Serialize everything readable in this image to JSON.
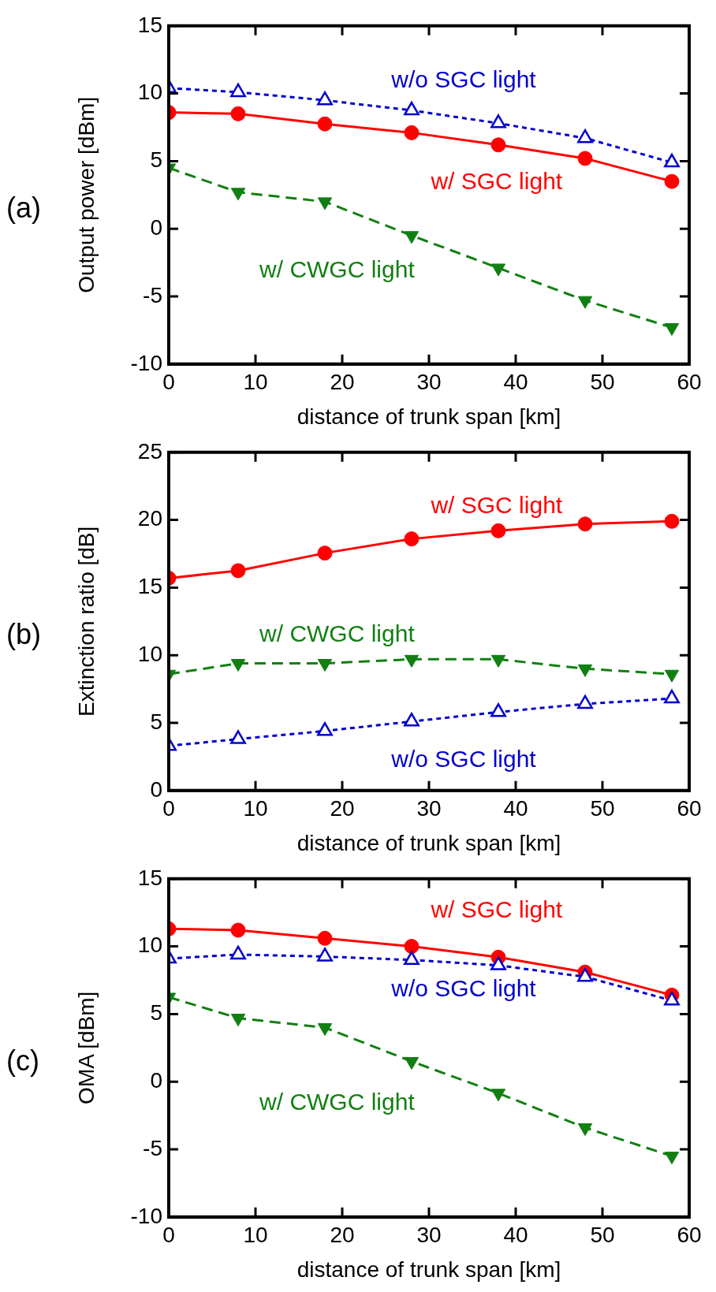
{
  "chart_data": [
    {
      "type": "line",
      "xlabel": "distance of trunk span [km]",
      "ylabel": "Output power [dBm]",
      "annotations": [
        "(a)"
      ],
      "x": [
        0,
        8,
        18,
        28,
        38,
        48,
        58
      ],
      "xlim": [
        0,
        60
      ],
      "xticks": [
        0,
        10,
        20,
        30,
        40,
        50,
        60
      ],
      "ylim": [
        -10,
        15
      ],
      "yticks": [
        -10,
        -5,
        0,
        5,
        10,
        15
      ],
      "legend": false,
      "series": [
        {
          "name": "w/o SGC light",
          "color": "#0000cc",
          "marker": "triangle",
          "line_style": "dotted",
          "values": [
            10.4,
            10.1,
            9.5,
            8.75,
            7.8,
            6.7,
            4.9
          ]
        },
        {
          "name": "w/ SGC light",
          "color": "#ff0000",
          "marker": "circle",
          "line_style": "solid",
          "values": [
            8.6,
            8.5,
            7.75,
            7.1,
            6.2,
            5.2,
            3.5
          ]
        },
        {
          "name": "w/ CWGC light",
          "color": "#117f11",
          "marker": "triangle-down",
          "line_style": "dashed",
          "values": [
            4.5,
            2.7,
            2.0,
            -0.5,
            -2.9,
            -5.3,
            -7.3
          ]
        }
      ]
    },
    {
      "type": "line",
      "xlabel": "distance of trunk span [km]",
      "ylabel": "Extinction ratio [dB]",
      "annotations": [
        "(b)"
      ],
      "x": [
        0,
        8,
        18,
        28,
        38,
        48,
        58
      ],
      "xlim": [
        0,
        60
      ],
      "xticks": [
        0,
        10,
        20,
        30,
        40,
        50,
        60
      ],
      "ylim": [
        0,
        25
      ],
      "yticks": [
        0,
        5,
        10,
        15,
        20,
        25
      ],
      "legend": false,
      "series": [
        {
          "name": "w/ SGC light",
          "color": "#ff0000",
          "marker": "circle",
          "line_style": "solid",
          "values": [
            15.7,
            16.25,
            17.55,
            18.6,
            19.2,
            19.7,
            19.9
          ]
        },
        {
          "name": "w/ CWGC light",
          "color": "#117f11",
          "marker": "triangle-down",
          "line_style": "dashed",
          "values": [
            8.6,
            9.4,
            9.4,
            9.7,
            9.7,
            9.0,
            8.6
          ]
        },
        {
          "name": "w/o SGC light",
          "color": "#0000cc",
          "marker": "triangle",
          "line_style": "dotted",
          "values": [
            3.3,
            3.8,
            4.4,
            5.1,
            5.8,
            6.4,
            6.8
          ]
        }
      ]
    },
    {
      "type": "line",
      "xlabel": "distance of trunk span [km]",
      "ylabel": "OMA [dBm]",
      "annotations": [
        "(c)"
      ],
      "x": [
        0,
        8,
        18,
        28,
        38,
        48,
        58
      ],
      "xlim": [
        0,
        60
      ],
      "xticks": [
        0,
        10,
        20,
        30,
        40,
        50,
        60
      ],
      "ylim": [
        -10,
        15
      ],
      "yticks": [
        -10,
        -5,
        0,
        5,
        10,
        15
      ],
      "legend": false,
      "series": [
        {
          "name": "w/ SGC light",
          "color": "#ff0000",
          "marker": "circle",
          "line_style": "solid",
          "values": [
            11.3,
            11.2,
            10.6,
            10.0,
            9.2,
            8.1,
            6.4
          ]
        },
        {
          "name": "w/o SGC light",
          "color": "#0000cc",
          "marker": "triangle",
          "line_style": "dotted",
          "values": [
            9.1,
            9.4,
            9.25,
            9.0,
            8.6,
            7.75,
            6.0
          ]
        },
        {
          "name": "w/ CWGC light",
          "color": "#117f11",
          "marker": "triangle-down",
          "line_style": "dashed",
          "values": [
            6.25,
            4.7,
            4.0,
            1.5,
            -0.85,
            -3.4,
            -5.5
          ]
        }
      ]
    }
  ]
}
